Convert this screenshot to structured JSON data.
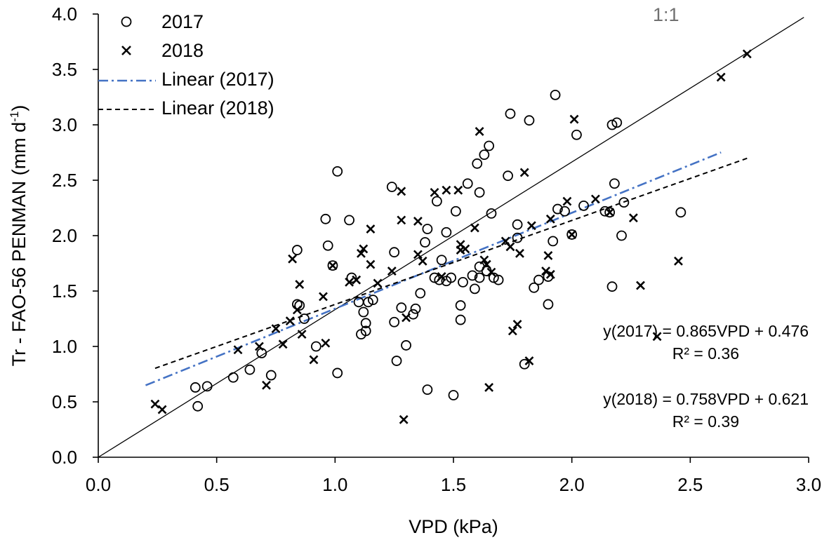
{
  "chart_data": {
    "type": "scatter",
    "title": "",
    "xlabel": "VPD (kPa)",
    "ylabel_prefix": "Tr - FAO-56  PENMAN (mm d",
    "ylabel_sup": "-1",
    "ylabel_suffix": ")",
    "xlim": [
      0.0,
      3.0
    ],
    "ylim": [
      0.0,
      4.0
    ],
    "x_ticks": [
      "0.0",
      "0.5",
      "1.0",
      "1.5",
      "2.0",
      "2.5",
      "3.0"
    ],
    "y_ticks": [
      "0.0",
      "0.5",
      "1.0",
      "1.5",
      "2.0",
      "2.5",
      "3.0",
      "3.5",
      "4.0"
    ],
    "grid": false,
    "legend_position": "top-left",
    "reference_line": {
      "label": "1:1",
      "x": [
        0.0,
        2.98
      ],
      "y": [
        0.0,
        3.97
      ]
    },
    "series": [
      {
        "name": "2017",
        "marker": "circle",
        "points": [
          [
            0.41,
            0.63
          ],
          [
            0.42,
            0.46
          ],
          [
            0.46,
            0.64
          ],
          [
            0.57,
            0.72
          ],
          [
            0.64,
            0.79
          ],
          [
            0.69,
            0.94
          ],
          [
            0.73,
            0.74
          ],
          [
            0.84,
            1.38
          ],
          [
            0.84,
            1.87
          ],
          [
            0.85,
            1.37
          ],
          [
            0.87,
            1.25
          ],
          [
            0.92,
            1.0
          ],
          [
            0.96,
            2.15
          ],
          [
            0.97,
            1.91
          ],
          [
            0.99,
            1.73
          ],
          [
            1.01,
            0.76
          ],
          [
            1.01,
            2.58
          ],
          [
            1.06,
            2.14
          ],
          [
            1.07,
            1.62
          ],
          [
            1.1,
            1.4
          ],
          [
            1.11,
            1.11
          ],
          [
            1.12,
            1.31
          ],
          [
            1.13,
            1.14
          ],
          [
            1.13,
            1.21
          ],
          [
            1.14,
            1.4
          ],
          [
            1.16,
            1.42
          ],
          [
            1.24,
            2.44
          ],
          [
            1.25,
            1.85
          ],
          [
            1.25,
            1.22
          ],
          [
            1.26,
            0.87
          ],
          [
            1.28,
            1.35
          ],
          [
            1.3,
            1.01
          ],
          [
            1.33,
            1.29
          ],
          [
            1.34,
            1.34
          ],
          [
            1.36,
            1.48
          ],
          [
            1.38,
            1.94
          ],
          [
            1.39,
            0.61
          ],
          [
            1.39,
            2.06
          ],
          [
            1.42,
            1.62
          ],
          [
            1.43,
            2.31
          ],
          [
            1.44,
            1.6
          ],
          [
            1.45,
            1.78
          ],
          [
            1.47,
            2.03
          ],
          [
            1.47,
            1.59
          ],
          [
            1.49,
            1.62
          ],
          [
            1.5,
            0.56
          ],
          [
            1.51,
            2.22
          ],
          [
            1.53,
            1.37
          ],
          [
            1.53,
            1.24
          ],
          [
            1.54,
            1.58
          ],
          [
            1.56,
            2.47
          ],
          [
            1.58,
            1.64
          ],
          [
            1.59,
            1.52
          ],
          [
            1.6,
            2.65
          ],
          [
            1.61,
            2.39
          ],
          [
            1.61,
            1.72
          ],
          [
            1.61,
            1.62
          ],
          [
            1.63,
            2.73
          ],
          [
            1.64,
            1.68
          ],
          [
            1.65,
            2.81
          ],
          [
            1.66,
            2.2
          ],
          [
            1.67,
            1.62
          ],
          [
            1.69,
            1.6
          ],
          [
            1.73,
            2.54
          ],
          [
            1.74,
            3.1
          ],
          [
            1.77,
            2.1
          ],
          [
            1.77,
            1.98
          ],
          [
            1.8,
            0.84
          ],
          [
            1.82,
            3.04
          ],
          [
            1.84,
            1.53
          ],
          [
            1.86,
            1.6
          ],
          [
            1.9,
            1.38
          ],
          [
            1.9,
            1.63
          ],
          [
            1.92,
            1.95
          ],
          [
            1.93,
            3.27
          ],
          [
            1.94,
            2.24
          ],
          [
            1.97,
            2.22
          ],
          [
            2.0,
            2.01
          ],
          [
            2.02,
            2.91
          ],
          [
            2.05,
            2.27
          ],
          [
            2.14,
            2.22
          ],
          [
            2.16,
            2.21
          ],
          [
            2.17,
            3.0
          ],
          [
            2.18,
            2.47
          ],
          [
            2.19,
            3.02
          ],
          [
            2.21,
            2.0
          ],
          [
            2.22,
            2.3
          ],
          [
            2.17,
            1.54
          ],
          [
            2.46,
            2.21
          ]
        ]
      },
      {
        "name": "2018",
        "marker": "cross",
        "points": [
          [
            0.24,
            0.48
          ],
          [
            0.27,
            0.43
          ],
          [
            0.59,
            0.97
          ],
          [
            0.68,
            1.0
          ],
          [
            0.71,
            0.65
          ],
          [
            0.75,
            1.16
          ],
          [
            0.78,
            1.02
          ],
          [
            0.81,
            1.23
          ],
          [
            0.82,
            1.79
          ],
          [
            0.84,
            1.33
          ],
          [
            0.85,
            1.56
          ],
          [
            0.86,
            1.11
          ],
          [
            0.91,
            0.88
          ],
          [
            0.95,
            1.45
          ],
          [
            0.96,
            1.03
          ],
          [
            0.99,
            1.73
          ],
          [
            1.06,
            1.58
          ],
          [
            1.09,
            1.6
          ],
          [
            1.11,
            1.84
          ],
          [
            1.12,
            1.88
          ],
          [
            1.15,
            2.06
          ],
          [
            1.15,
            1.74
          ],
          [
            1.18,
            1.57
          ],
          [
            1.24,
            1.68
          ],
          [
            1.28,
            2.4
          ],
          [
            1.28,
            2.14
          ],
          [
            1.3,
            1.26
          ],
          [
            1.29,
            0.34
          ],
          [
            1.35,
            2.13
          ],
          [
            1.35,
            1.83
          ],
          [
            1.37,
            1.77
          ],
          [
            1.42,
            2.39
          ],
          [
            1.45,
            1.63
          ],
          [
            1.47,
            2.41
          ],
          [
            1.52,
            2.41
          ],
          [
            1.53,
            1.92
          ],
          [
            1.53,
            1.87
          ],
          [
            1.55,
            1.88
          ],
          [
            1.59,
            2.07
          ],
          [
            1.61,
            2.94
          ],
          [
            1.63,
            1.78
          ],
          [
            1.64,
            1.74
          ],
          [
            1.65,
            0.63
          ],
          [
            1.66,
            1.67
          ],
          [
            1.72,
            1.95
          ],
          [
            1.74,
            1.9
          ],
          [
            1.75,
            1.14
          ],
          [
            1.77,
            1.2
          ],
          [
            1.78,
            1.84
          ],
          [
            1.8,
            2.57
          ],
          [
            1.82,
            0.87
          ],
          [
            1.83,
            2.09
          ],
          [
            1.89,
            1.68
          ],
          [
            1.9,
            1.82
          ],
          [
            1.91,
            2.15
          ],
          [
            1.91,
            1.65
          ],
          [
            1.98,
            2.31
          ],
          [
            2.0,
            2.01
          ],
          [
            2.01,
            3.05
          ],
          [
            2.1,
            2.33
          ],
          [
            2.16,
            2.21
          ],
          [
            2.26,
            2.16
          ],
          [
            2.29,
            1.55
          ],
          [
            2.36,
            1.09
          ],
          [
            2.45,
            1.77
          ],
          [
            2.63,
            3.43
          ],
          [
            2.74,
            3.64
          ]
        ]
      }
    ],
    "fits": [
      {
        "name": "Linear (2017)",
        "slope": 0.865,
        "intercept": 0.476,
        "x_range": [
          0.2,
          2.63
        ],
        "style": "dash-dot",
        "color": "#4472c4"
      },
      {
        "name": "Linear (2018)",
        "slope": 0.758,
        "intercept": 0.621,
        "x_range": [
          0.24,
          2.74
        ],
        "style": "dashed",
        "color": "#000000"
      }
    ],
    "legend": [
      "2017",
      "2018",
      "Linear (2017)",
      "Linear (2018)"
    ],
    "annotations": [
      {
        "eq": "y(2017) = 0.865VPD + 0.476",
        "r2": "R² = 0.36"
      },
      {
        "eq": "y(2018) = 0.758VPD + 0.621",
        "r2": "R² = 0.39"
      }
    ]
  }
}
